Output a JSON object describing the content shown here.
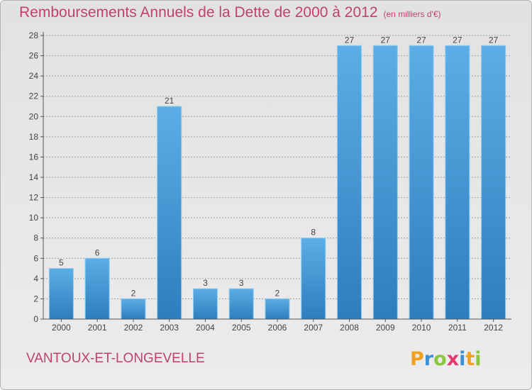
{
  "title": "Remboursements Annuels de la Dette de 2000 à 2012",
  "unit": "(en milliers d'€)",
  "commune": "VANTOUX-ET-LONGEVELLE",
  "logo_text": "Proxiti",
  "colors": {
    "title": "#c2416a",
    "bar_top": "#5caee6",
    "bar_bottom": "#2e7dbd",
    "axis": "#555555",
    "grid": "#a0a0a0"
  },
  "chart_data": {
    "type": "bar",
    "title": "Remboursements Annuels de la Dette de 2000 à 2012",
    "subtitle": "(en milliers d'€)",
    "categories": [
      "2000",
      "2001",
      "2002",
      "2003",
      "2004",
      "2005",
      "2006",
      "2007",
      "2008",
      "2009",
      "2010",
      "2011",
      "2012"
    ],
    "values": [
      5,
      6,
      2,
      21,
      3,
      3,
      2,
      8,
      27,
      27,
      27,
      27,
      27
    ],
    "ylim": [
      0,
      28
    ],
    "yticks": [
      0,
      2,
      4,
      6,
      8,
      10,
      12,
      14,
      16,
      18,
      20,
      22,
      24,
      26,
      28
    ],
    "grid": true,
    "data_labels": true
  }
}
